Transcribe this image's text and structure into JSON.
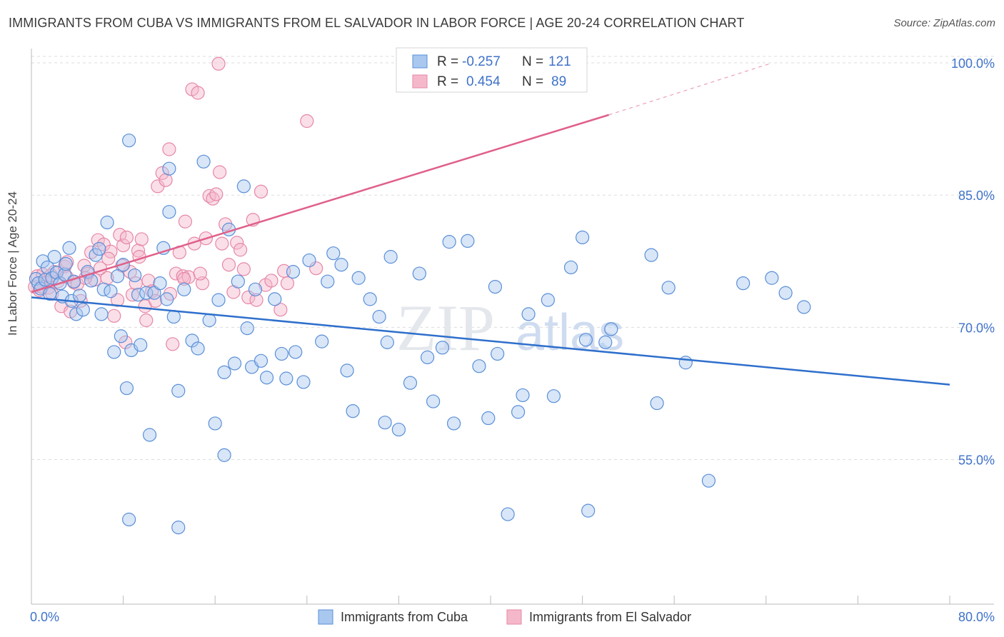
{
  "title": "IMMIGRANTS FROM CUBA VS IMMIGRANTS FROM EL SALVADOR IN LABOR FORCE | AGE 20-24 CORRELATION CHART",
  "source": "Source: ZipAtlas.com",
  "colors": {
    "cuba_fill": "#a9c8ef",
    "cuba_stroke": "#5a8fd8",
    "cuba_line": "#2e6fcc",
    "salvador_fill": "#f5b8cb",
    "salvador_stroke": "#e687a6",
    "salvador_line": "#e0608a",
    "axis_label": "#3f72c9",
    "grid": "#dddddd"
  },
  "chart_data": {
    "type": "scatter",
    "title": "IMMIGRANTS FROM CUBA VS IMMIGRANTS FROM EL SALVADOR IN LABOR FORCE | AGE 20-24 CORRELATION CHART",
    "xlabel": "",
    "ylabel": "In Labor Force | Age 20-24",
    "xlim": [
      0,
      80
    ],
    "ylim": [
      38.6,
      101.3
    ],
    "x_tick_labels": [
      "0.0%",
      "80.0%"
    ],
    "y_ticks": [
      100,
      85,
      70,
      55
    ],
    "y_tick_labels": [
      "100.0%",
      "85.0%",
      "70.0%",
      "55.0%"
    ],
    "legend_position": "bottom",
    "stats": [
      {
        "r_label": "R =",
        "r_value": "-0.257",
        "n_label": "N =",
        "n_value": "121"
      },
      {
        "r_label": "R =",
        "r_value": "0.454",
        "n_label": "N =",
        "n_value": "89"
      }
    ],
    "series": [
      {
        "name": "Immigrants from Cuba",
        "trend": {
          "x": [
            0,
            80
          ],
          "y": [
            73.4,
            63.5
          ]
        },
        "points": [
          [
            0.4,
            75.5
          ],
          [
            0.6,
            75.0
          ],
          [
            0.8,
            74.4
          ],
          [
            1.0,
            77.5
          ],
          [
            1.2,
            75.4
          ],
          [
            1.4,
            76.8
          ],
          [
            1.6,
            73.8
          ],
          [
            1.8,
            75.6
          ],
          [
            2.0,
            78.0
          ],
          [
            2.2,
            76.2
          ],
          [
            2.5,
            75.0
          ],
          [
            2.7,
            73.5
          ],
          [
            2.9,
            76.0
          ],
          [
            3.0,
            77.2
          ],
          [
            3.3,
            79.0
          ],
          [
            3.5,
            73.0
          ],
          [
            3.7,
            75.2
          ],
          [
            3.9,
            71.5
          ],
          [
            4.2,
            73.6
          ],
          [
            4.5,
            72.0
          ],
          [
            4.9,
            76.3
          ],
          [
            5.2,
            75.3
          ],
          [
            5.6,
            78.2
          ],
          [
            5.9,
            78.9
          ],
          [
            6.1,
            71.5
          ],
          [
            6.3,
            74.3
          ],
          [
            6.6,
            81.9
          ],
          [
            6.9,
            74.1
          ],
          [
            7.2,
            67.2
          ],
          [
            7.5,
            75.8
          ],
          [
            7.8,
            69.0
          ],
          [
            8.0,
            77.1
          ],
          [
            8.3,
            63.1
          ],
          [
            8.5,
            91.2
          ],
          [
            8.7,
            67.4
          ],
          [
            9.0,
            75.9
          ],
          [
            9.3,
            73.7
          ],
          [
            9.5,
            68.0
          ],
          [
            10.0,
            73.9
          ],
          [
            10.3,
            57.8
          ],
          [
            10.7,
            73.9
          ],
          [
            11.2,
            75.0
          ],
          [
            11.5,
            79.0
          ],
          [
            11.8,
            73.2
          ],
          [
            12.0,
            83.1
          ],
          [
            12.4,
            71.2
          ],
          [
            12.8,
            62.8
          ],
          [
            13.3,
            74.3
          ],
          [
            14.0,
            68.5
          ],
          [
            14.5,
            67.6
          ],
          [
            15.0,
            88.8
          ],
          [
            15.5,
            70.8
          ],
          [
            16.0,
            59.1
          ],
          [
            16.3,
            73.1
          ],
          [
            16.8,
            55.5
          ],
          [
            17.2,
            81.1
          ],
          [
            17.7,
            65.9
          ],
          [
            18.0,
            75.2
          ],
          [
            18.5,
            86.0
          ],
          [
            18.8,
            69.9
          ],
          [
            19.2,
            65.5
          ],
          [
            19.5,
            74.3
          ],
          [
            20.0,
            66.2
          ],
          [
            20.5,
            64.3
          ],
          [
            21.2,
            73.2
          ],
          [
            21.8,
            67.0
          ],
          [
            22.2,
            64.2
          ],
          [
            22.8,
            76.3
          ],
          [
            23.0,
            67.2
          ],
          [
            23.7,
            63.8
          ],
          [
            24.2,
            77.6
          ],
          [
            25.3,
            68.4
          ],
          [
            25.8,
            75.2
          ],
          [
            26.3,
            78.4
          ],
          [
            27.0,
            77.1
          ],
          [
            27.5,
            65.1
          ],
          [
            28.0,
            60.5
          ],
          [
            28.5,
            75.6
          ],
          [
            29.5,
            73.2
          ],
          [
            30.3,
            71.2
          ],
          [
            30.8,
            59.2
          ],
          [
            31.3,
            78.0
          ],
          [
            31.0,
            68.3
          ],
          [
            32.0,
            58.4
          ],
          [
            33.0,
            63.7
          ],
          [
            33.8,
            76.1
          ],
          [
            34.5,
            66.6
          ],
          [
            35.0,
            61.6
          ],
          [
            35.8,
            67.7
          ],
          [
            36.4,
            79.7
          ],
          [
            36.8,
            59.1
          ],
          [
            38.0,
            79.8
          ],
          [
            39.0,
            65.6
          ],
          [
            39.8,
            59.7
          ],
          [
            40.4,
            74.6
          ],
          [
            40.6,
            67.0
          ],
          [
            41.5,
            48.8
          ],
          [
            42.4,
            60.4
          ],
          [
            42.8,
            62.3
          ],
          [
            43.3,
            71.5
          ],
          [
            45.0,
            73.1
          ],
          [
            45.5,
            62.2
          ],
          [
            47.0,
            76.8
          ],
          [
            48.0,
            80.2
          ],
          [
            48.3,
            68.6
          ],
          [
            48.5,
            49.2
          ],
          [
            50.0,
            68.3
          ],
          [
            50.5,
            69.8
          ],
          [
            54.0,
            78.2
          ],
          [
            54.5,
            61.4
          ],
          [
            55.5,
            74.5
          ],
          [
            57.0,
            66.0
          ],
          [
            59.0,
            52.6
          ],
          [
            62.0,
            75.0
          ],
          [
            64.5,
            75.6
          ],
          [
            65.7,
            73.9
          ],
          [
            67.3,
            72.3
          ],
          [
            8.5,
            48.2
          ],
          [
            12.8,
            47.3
          ],
          [
            16.8,
            64.9
          ],
          [
            12.0,
            88.0
          ]
        ]
      },
      {
        "name": "Immigrants from El Salvador",
        "trend": {
          "x": [
            0,
            50.3
          ],
          "y": [
            74.0,
            94.1
          ]
        },
        "trend_dashed": {
          "x": [
            50.3,
            64.3
          ],
          "y": [
            94.1,
            99.9
          ]
        },
        "points": [
          [
            0.3,
            74.6
          ],
          [
            0.5,
            75.8
          ],
          [
            0.7,
            74.2
          ],
          [
            1.0,
            76.0
          ],
          [
            1.3,
            75.1
          ],
          [
            1.5,
            74.5
          ],
          [
            1.8,
            73.8
          ],
          [
            2.0,
            76.3
          ],
          [
            2.3,
            75.2
          ],
          [
            2.6,
            72.4
          ],
          [
            2.9,
            76.9
          ],
          [
            3.1,
            75.7
          ],
          [
            3.4,
            71.8
          ],
          [
            3.7,
            75.1
          ],
          [
            4.0,
            74.9
          ],
          [
            4.3,
            73.0
          ],
          [
            4.6,
            77.0
          ],
          [
            4.9,
            76.1
          ],
          [
            5.2,
            78.5
          ],
          [
            5.5,
            75.4
          ],
          [
            5.8,
            79.9
          ],
          [
            6.0,
            76.7
          ],
          [
            6.3,
            79.4
          ],
          [
            6.6,
            75.6
          ],
          [
            6.9,
            78.6
          ],
          [
            7.2,
            71.3
          ],
          [
            7.5,
            73.1
          ],
          [
            7.7,
            80.5
          ],
          [
            8.0,
            79.3
          ],
          [
            8.3,
            80.2
          ],
          [
            8.6,
            76.3
          ],
          [
            8.8,
            73.7
          ],
          [
            9.1,
            75.0
          ],
          [
            9.3,
            78.7
          ],
          [
            9.6,
            80.0
          ],
          [
            9.9,
            72.4
          ],
          [
            10.2,
            75.3
          ],
          [
            10.5,
            74.1
          ],
          [
            10.8,
            73.0
          ],
          [
            11.0,
            86.0
          ],
          [
            11.4,
            87.5
          ],
          [
            11.7,
            86.7
          ],
          [
            12.0,
            90.2
          ],
          [
            12.3,
            68.1
          ],
          [
            12.6,
            76.1
          ],
          [
            12.9,
            78.5
          ],
          [
            13.2,
            75.8
          ],
          [
            13.4,
            82.0
          ],
          [
            13.7,
            75.7
          ],
          [
            14.0,
            97.0
          ],
          [
            14.2,
            79.5
          ],
          [
            14.5,
            96.6
          ],
          [
            14.9,
            75.0
          ],
          [
            15.2,
            80.1
          ],
          [
            15.5,
            84.9
          ],
          [
            15.8,
            84.6
          ],
          [
            16.1,
            85.1
          ],
          [
            16.4,
            87.6
          ],
          [
            16.6,
            79.5
          ],
          [
            16.9,
            81.7
          ],
          [
            17.2,
            77.1
          ],
          [
            17.6,
            74.0
          ],
          [
            17.9,
            79.6
          ],
          [
            18.2,
            78.8
          ],
          [
            18.5,
            76.6
          ],
          [
            18.9,
            73.4
          ],
          [
            19.3,
            82.2
          ],
          [
            19.6,
            73.1
          ],
          [
            20.0,
            85.4
          ],
          [
            20.4,
            74.8
          ],
          [
            20.9,
            75.3
          ],
          [
            21.7,
            72.0
          ],
          [
            22.0,
            76.4
          ],
          [
            22.3,
            75.0
          ],
          [
            16.3,
            99.9
          ],
          [
            24.0,
            93.4
          ],
          [
            24.8,
            76.7
          ],
          [
            10.0,
            70.8
          ],
          [
            8.2,
            68.3
          ],
          [
            4.7,
            75.6
          ],
          [
            3.1,
            77.4
          ],
          [
            1.7,
            75.9
          ],
          [
            0.9,
            74.6
          ],
          [
            6.7,
            77.8
          ],
          [
            7.9,
            77.0
          ],
          [
            9.4,
            78.0
          ],
          [
            12.1,
            73.8
          ],
          [
            13.3,
            75.5
          ],
          [
            14.7,
            76.1
          ]
        ]
      }
    ]
  },
  "legend": {
    "items": [
      {
        "label": "Immigrants from Cuba"
      },
      {
        "label": "Immigrants from El Salvador"
      }
    ]
  },
  "watermark": "ZIPatlas"
}
